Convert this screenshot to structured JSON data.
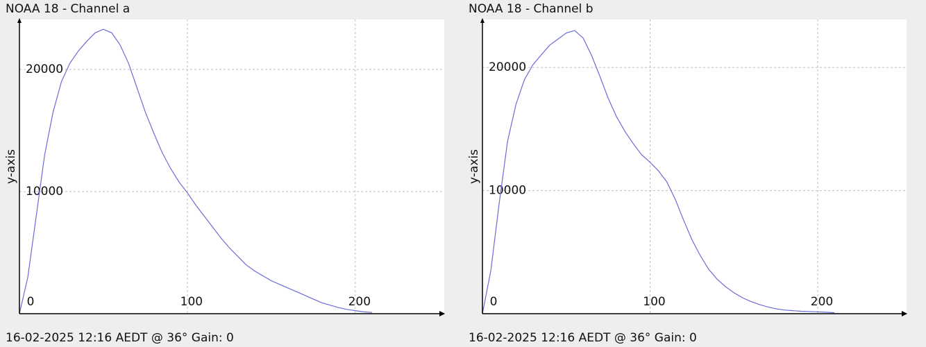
{
  "chart_data": [
    {
      "type": "line",
      "title": "NOAA 18 - Channel a",
      "y_label": "y-axis",
      "caption": "16-02-2025 12:16 AEDT @ 36° Gain: 0",
      "color": "#6b6bd6",
      "grid": true,
      "x": [
        0,
        5,
        10,
        15,
        20,
        25,
        30,
        35,
        40,
        45,
        50,
        55,
        60,
        65,
        70,
        75,
        80,
        85,
        90,
        95,
        100,
        105,
        110,
        115,
        120,
        125,
        130,
        135,
        140,
        145,
        150,
        155,
        160,
        165,
        170,
        175,
        180,
        185,
        190,
        195,
        200,
        205,
        210
      ],
      "values": [
        0,
        3000,
        8000,
        13000,
        16500,
        19000,
        20500,
        21500,
        22300,
        23000,
        23300,
        23000,
        22000,
        20500,
        18500,
        16500,
        14800,
        13200,
        11900,
        10800,
        9900,
        8900,
        8000,
        7100,
        6200,
        5400,
        4700,
        4000,
        3500,
        3100,
        2700,
        2400,
        2100,
        1800,
        1500,
        1200,
        900,
        700,
        500,
        350,
        250,
        150,
        100
      ],
      "xlim": [
        0,
        253
      ],
      "ylim": [
        0,
        24100
      ],
      "xticks": [
        0,
        100,
        200
      ],
      "yticks": [
        10000,
        20000
      ]
    },
    {
      "type": "line",
      "title": "NOAA 18 - Channel b",
      "y_label": "y-axis",
      "caption": "16-02-2025 12:16 AEDT @ 36° Gain: 0",
      "color": "#6b6bd6",
      "grid": true,
      "x": [
        0,
        5,
        10,
        15,
        20,
        25,
        30,
        35,
        40,
        45,
        50,
        55,
        60,
        65,
        70,
        75,
        80,
        85,
        90,
        95,
        100,
        105,
        110,
        115,
        120,
        125,
        130,
        135,
        140,
        145,
        150,
        155,
        160,
        165,
        170,
        175,
        180,
        185,
        190,
        195,
        200,
        205,
        210
      ],
      "values": [
        0,
        3500,
        9000,
        14000,
        17000,
        19000,
        20200,
        21000,
        21800,
        22300,
        22800,
        23000,
        22400,
        21000,
        19300,
        17500,
        16000,
        14800,
        13800,
        12900,
        12300,
        11600,
        10700,
        9300,
        7600,
        6000,
        4700,
        3600,
        2800,
        2200,
        1700,
        1300,
        1000,
        750,
        550,
        400,
        300,
        250,
        200,
        180,
        150,
        120,
        80
      ],
      "xlim": [
        0,
        253
      ],
      "ylim": [
        0,
        23900
      ],
      "xticks": [
        0,
        100,
        200
      ],
      "yticks": [
        10000,
        20000
      ]
    }
  ]
}
